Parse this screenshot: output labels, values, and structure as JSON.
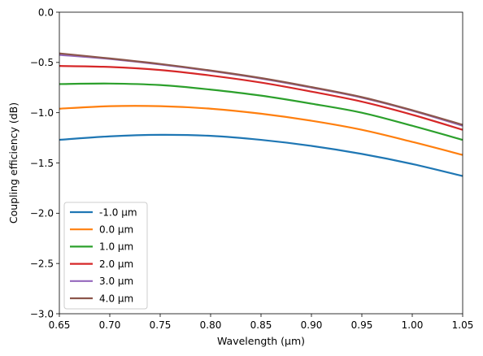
{
  "chart_data": {
    "type": "line",
    "title": "",
    "xlabel": "Wavelength (µm)",
    "ylabel": "Coupling efficiency (dB)",
    "xlim": [
      0.65,
      1.05
    ],
    "ylim": [
      -3.0,
      0.0
    ],
    "xticks": [
      0.65,
      0.7,
      0.75,
      0.8,
      0.85,
      0.9,
      0.95,
      1.0,
      1.05
    ],
    "yticks": [
      -3.0,
      -2.5,
      -2.0,
      -1.5,
      -1.0,
      -0.5,
      0.0
    ],
    "xtick_labels": [
      "0.65",
      "0.70",
      "0.75",
      "0.80",
      "0.85",
      "0.90",
      "0.95",
      "1.00",
      "1.05"
    ],
    "ytick_labels": [
      "−3.0",
      "−2.5",
      "−2.0",
      "−1.5",
      "−1.0",
      "−0.5",
      "0.0"
    ],
    "grid": false,
    "legend_position": "lower-left",
    "x": [
      0.65,
      0.7,
      0.75,
      0.8,
      0.85,
      0.9,
      0.95,
      1.0,
      1.05
    ],
    "series": [
      {
        "name": "-1.0 µm",
        "color": "#1f77b4",
        "values": [
          -1.27,
          -1.235,
          -1.22,
          -1.23,
          -1.27,
          -1.33,
          -1.41,
          -1.51,
          -1.63
        ]
      },
      {
        "name": "0.0 µm",
        "color": "#ff7f0e",
        "values": [
          -0.96,
          -0.935,
          -0.935,
          -0.96,
          -1.01,
          -1.08,
          -1.17,
          -1.29,
          -1.42
        ]
      },
      {
        "name": "1.0 µm",
        "color": "#2ca02c",
        "values": [
          -0.715,
          -0.71,
          -0.725,
          -0.77,
          -0.83,
          -0.91,
          -1.0,
          -1.13,
          -1.27
        ]
      },
      {
        "name": "2.0 µm",
        "color": "#d62728",
        "values": [
          -0.535,
          -0.545,
          -0.575,
          -0.63,
          -0.7,
          -0.79,
          -0.89,
          -1.02,
          -1.17
        ]
      },
      {
        "name": "3.0 µm",
        "color": "#9467bd",
        "values": [
          -0.425,
          -0.465,
          -0.52,
          -0.585,
          -0.66,
          -0.75,
          -0.85,
          -0.98,
          -1.13
        ]
      },
      {
        "name": "4.0 µm",
        "color": "#8c564b",
        "values": [
          -0.41,
          -0.46,
          -0.515,
          -0.58,
          -0.655,
          -0.745,
          -0.845,
          -0.975,
          -1.12
        ]
      }
    ]
  }
}
